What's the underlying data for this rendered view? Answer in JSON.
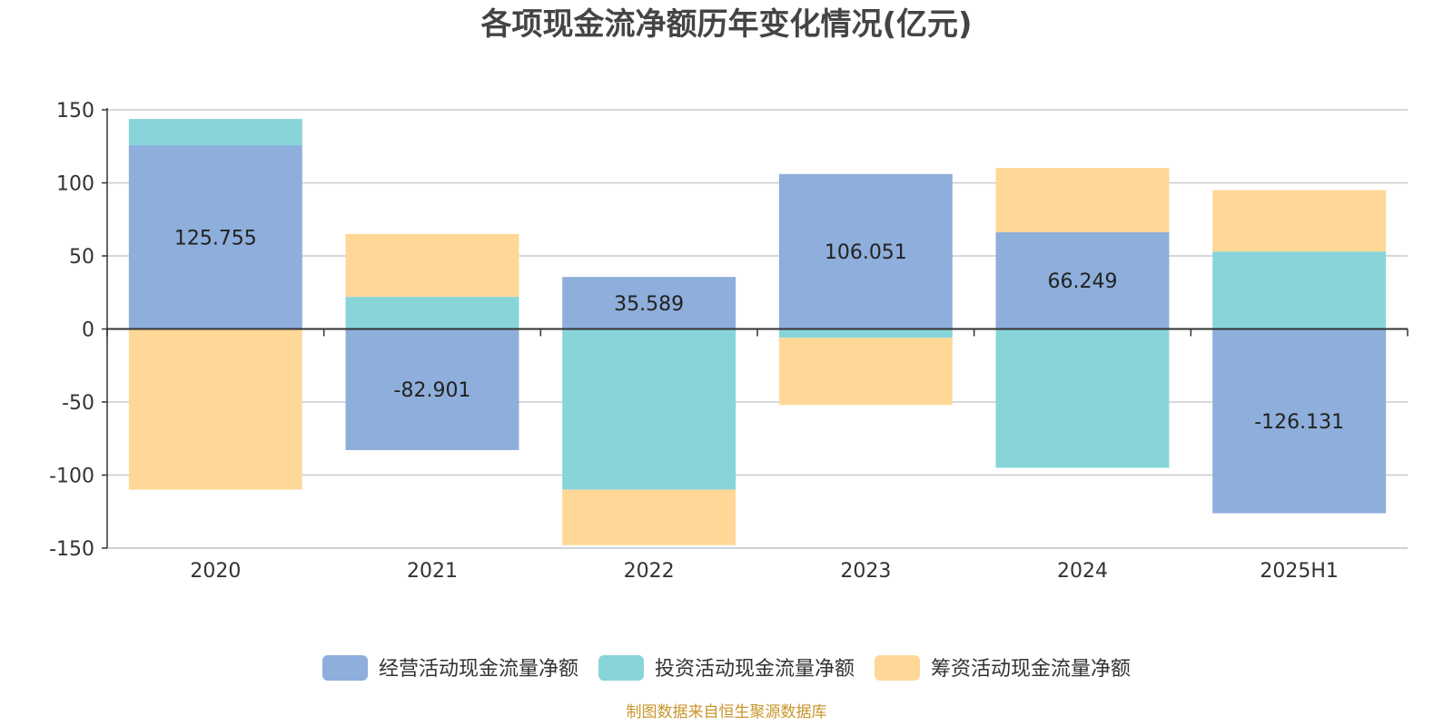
{
  "chart_data": {
    "type": "bar",
    "stacked": true,
    "title": "各项现金流净额历年变化情况(亿元)",
    "xlabel": "",
    "ylabel": "",
    "categories": [
      "2020",
      "2021",
      "2022",
      "2023",
      "2024",
      "2025H1"
    ],
    "ylim": [
      -150,
      150
    ],
    "yticks": [
      150,
      100,
      50,
      0,
      -50,
      -100,
      -150
    ],
    "grid": true,
    "legend_position": "bottom",
    "series": [
      {
        "name": "经营活动现金流量净额",
        "color": "#8eaedb",
        "values": [
          125.755,
          -82.901,
          35.589,
          106.051,
          66.249,
          -126.131
        ]
      },
      {
        "name": "投资活动现金流量净额",
        "color": "#88d5d9",
        "values": [
          18,
          22,
          -110,
          -6,
          -95,
          53
        ]
      },
      {
        "name": "筹资活动现金流量净额",
        "color": "#ffd898",
        "values": [
          -110,
          43,
          -38,
          -46,
          44,
          42
        ]
      }
    ],
    "data_labels": [
      "125.755",
      "-82.901",
      "35.589",
      "106.051",
      "66.249",
      "-126.131"
    ]
  },
  "source_note": "制图数据来自恒生聚源数据库",
  "colors": {
    "source_note": "#c8962a",
    "grid": "#c8ccd4",
    "axis": "#333333"
  }
}
